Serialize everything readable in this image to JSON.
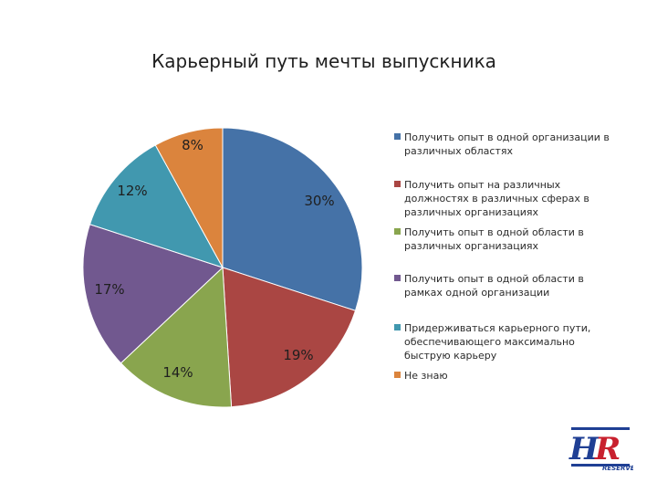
{
  "chart_data": {
    "type": "pie",
    "title": "Карьерный путь мечты выпускника",
    "slices": [
      {
        "label": "Получить опыт в одной организации в различных областях",
        "value": 30,
        "display": "30%",
        "color": "#4572A7"
      },
      {
        "label": "Получить опыт на различных должностях в различных сферах в различных организациях",
        "value": 19,
        "display": "19%",
        "color": "#AA4643"
      },
      {
        "label": "Получить опыт в одной области в различных организациях",
        "value": 14,
        "display": "14%",
        "color": "#89A54E"
      },
      {
        "label": "Получить опыт в одной области в рамках одной организации",
        "value": 17,
        "display": "17%",
        "color": "#71588F"
      },
      {
        "label": "Придерживаться карьерного пути, обеспечивающего максимально быструю карьеру",
        "value": 12,
        "display": "12%",
        "color": "#4198AF"
      },
      {
        "label": "Не знаю",
        "value": 8,
        "display": "8%",
        "color": "#DB843D"
      }
    ],
    "legend_position": "right"
  },
  "logo": {
    "big": "HR",
    "small": "RESERVE",
    "color_red": "#c8202e",
    "color_blue": "#1f3f94"
  }
}
